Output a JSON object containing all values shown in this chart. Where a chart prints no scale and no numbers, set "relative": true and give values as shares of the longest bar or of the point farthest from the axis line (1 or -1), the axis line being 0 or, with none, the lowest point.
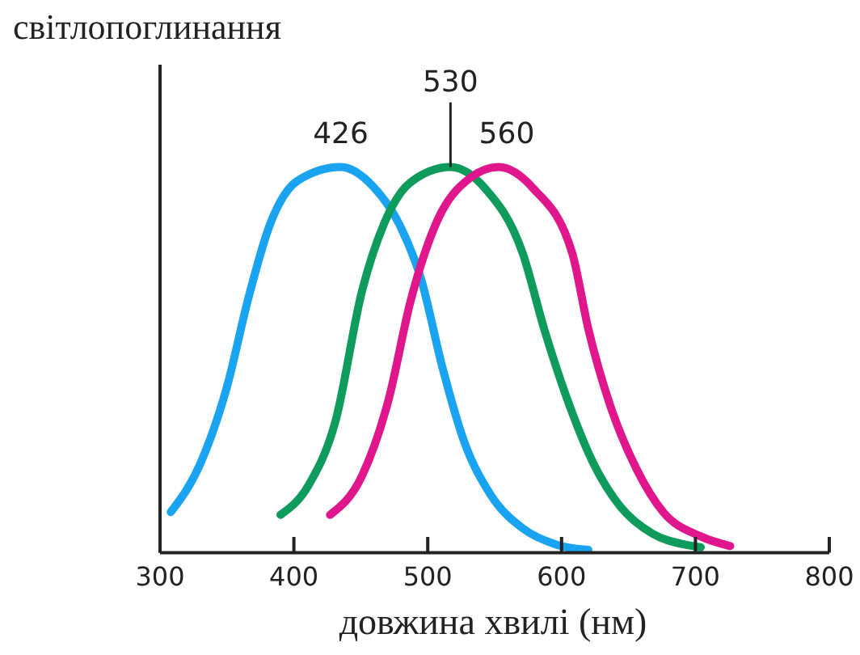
{
  "chart_data": {
    "type": "line",
    "relative": true,
    "xlabel": "довжина хвилі (нм)",
    "ylabel": "світлопоглинання",
    "xlim": [
      300,
      800
    ],
    "xticks": [
      300,
      400,
      500,
      600,
      700,
      800
    ],
    "grid": false,
    "line_style": "solid",
    "series": [
      {
        "color": "#1aa3f0",
        "x": [
          308,
          330,
          350,
          366,
          382,
          403,
          435,
          459,
          479,
          495,
          511,
          527,
          547,
          571,
          596,
          620
        ],
        "values": [
          0.105,
          0.23,
          0.43,
          0.66,
          0.85,
          0.965,
          1,
          0.95,
          0.85,
          0.71,
          0.48,
          0.29,
          0.15,
          0.063,
          0.021,
          0.007
        ]
      },
      {
        "color": "#0f9b5b",
        "x": [
          390,
          411,
          431,
          451,
          467,
          487,
          517,
          543,
          571,
          587,
          604,
          624,
          644,
          668,
          692,
          704
        ],
        "values": [
          0.098,
          0.175,
          0.34,
          0.68,
          0.85,
          0.96,
          1,
          0.944,
          0.776,
          0.58,
          0.4,
          0.23,
          0.119,
          0.049,
          0.021,
          0.014
        ]
      },
      {
        "color": "#e0168c",
        "x": [
          427,
          451,
          471,
          487,
          507,
          531,
          553,
          579,
          608,
          620,
          636,
          656,
          676,
          704,
          726
        ],
        "values": [
          0.098,
          0.2,
          0.4,
          0.65,
          0.86,
          0.97,
          1,
          0.944,
          0.776,
          0.58,
          0.385,
          0.217,
          0.105,
          0.042,
          0.017
        ]
      }
    ],
    "annotations": [
      {
        "text": "426",
        "x": 435,
        "y": 1
      },
      {
        "text": "530",
        "x": 517,
        "y": 1
      },
      {
        "text": "560",
        "x": 553,
        "y": 1
      }
    ]
  }
}
